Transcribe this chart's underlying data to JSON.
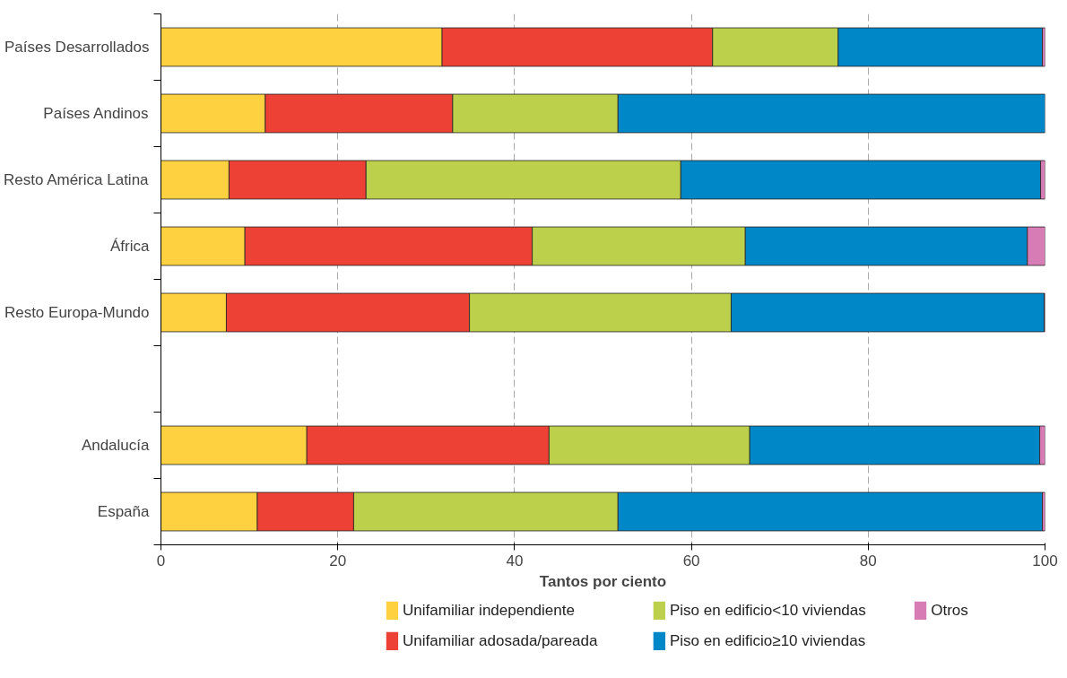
{
  "chart_data": {
    "type": "bar",
    "orientation": "horizontal",
    "stacked": true,
    "xlabel": "Tantos por ciento",
    "categories": [
      "Países Desarrollados",
      "Países Andinos",
      "Resto América Latina",
      "África",
      "Resto Europa-Mundo",
      null,
      "Andalucía",
      "España"
    ],
    "series": [
      {
        "name": "Unifamiliar independiente",
        "color": "#fdd13f",
        "values": [
          31.8,
          11.8,
          7.7,
          9.5,
          7.4,
          null,
          16.5,
          10.9
        ]
      },
      {
        "name": "Unifamiliar adosada/pareada",
        "color": "#ee4136",
        "values": [
          30.6,
          21.2,
          15.5,
          32.5,
          27.5,
          null,
          27.4,
          10.9
        ]
      },
      {
        "name": "Piso en edificio<10 viviendas",
        "color": "#bcd04b",
        "values": [
          14.2,
          18.7,
          35.6,
          24.1,
          29.6,
          null,
          22.7,
          29.9
        ]
      },
      {
        "name": "Piso en edificio≥10 viviendas",
        "color": "#0087c8",
        "values": [
          23.1,
          48.3,
          40.7,
          31.9,
          35.4,
          null,
          32.8,
          48.0
        ]
      },
      {
        "name": "Otros",
        "color": "#d87cb6",
        "values": [
          0.3,
          0,
          0.5,
          2.0,
          0.1,
          null,
          0.6,
          0.3
        ]
      }
    ],
    "xlim": [
      0,
      100
    ],
    "xticks": [
      0,
      20,
      40,
      60,
      80,
      100
    ],
    "grid": "x",
    "legend": "bottom"
  }
}
